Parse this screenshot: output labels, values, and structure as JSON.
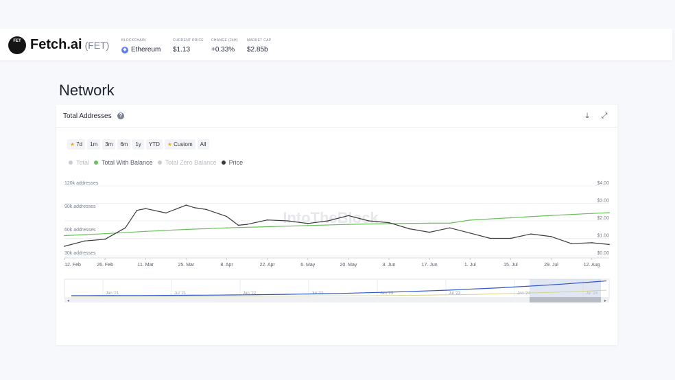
{
  "header": {
    "logo_text": "FET",
    "brand": "Fetch.ai",
    "ticker": "(FET)",
    "stats": [
      {
        "label": "BLOCKCHAIN",
        "value": "Ethereum"
      },
      {
        "label": "CURRENT PRICE",
        "value": "$1.13"
      },
      {
        "label": "CHANGE (24H)",
        "value": "+0.33%"
      },
      {
        "label": "MARKET CAP",
        "value": "$2.85b"
      }
    ]
  },
  "section_title": "Network",
  "card": {
    "title": "Total Addresses",
    "help_icon": "question-circle-icon",
    "download_icon": "download-icon",
    "expand_icon": "expand-icon"
  },
  "ranges": [
    "7d",
    "1m",
    "3m",
    "6m",
    "1y",
    "YTD",
    "Custom",
    "All"
  ],
  "watermark": "IntoTheBlock",
  "colors": {
    "total_with_balance": "#6abf5c",
    "price": "#3a3a3a",
    "inactive": "#c8ccd3",
    "navigator_blue": "#2f55c9"
  },
  "navigator": {
    "labels": [
      "Jan '21",
      "Jul '21",
      "Jan '22",
      "Jul '22",
      "Jan '23",
      "Jul '23",
      "Jan '24",
      "Jul '24"
    ]
  },
  "chart_data": {
    "type": "line",
    "title": "Total Addresses",
    "legend": [
      {
        "name": "Total",
        "active": false
      },
      {
        "name": "Total With Balance",
        "active": true
      },
      {
        "name": "Total Zero Balance",
        "active": false
      },
      {
        "name": "Price",
        "active": true
      }
    ],
    "legend_position": "top-left",
    "grid": "horizontal",
    "x_labels": [
      "12. Feb",
      "26. Feb",
      "11. Mar",
      "25. Mar",
      "8. Apr",
      "22. Apr",
      "6. May",
      "20. May",
      "3. Jun",
      "17. Jun",
      "1. Jul",
      "15. Jul",
      "29. Jul",
      "12. Aug"
    ],
    "y_left": {
      "ticks": [
        "120k addresses",
        "90k addresses",
        "60k addresses",
        "30k addresses"
      ],
      "range": [
        30000,
        120000
      ]
    },
    "y_right": {
      "ticks": [
        "$4.00",
        "$3.00",
        "$2.00",
        "$1.00",
        "$0.00"
      ],
      "range": [
        0,
        4
      ]
    },
    "series": [
      {
        "name": "Total With Balance",
        "axis": "left",
        "x": [
          "2024-02-12",
          "2024-02-26",
          "2024-03-11",
          "2024-03-25",
          "2024-04-08",
          "2024-04-22",
          "2024-05-06",
          "2024-05-20",
          "2024-06-03",
          "2024-06-17",
          "2024-06-24",
          "2024-07-01",
          "2024-07-15",
          "2024-07-29",
          "2024-08-12",
          "2024-08-18"
        ],
        "values": [
          56000,
          58500,
          61500,
          64000,
          66000,
          67500,
          69000,
          70500,
          71500,
          72000,
          72000,
          76000,
          79000,
          82000,
          84500,
          85500
        ]
      },
      {
        "name": "Price",
        "axis": "right",
        "x": [
          "2024-02-12",
          "2024-02-19",
          "2024-02-26",
          "2024-03-04",
          "2024-03-08",
          "2024-03-11",
          "2024-03-18",
          "2024-03-25",
          "2024-03-28",
          "2024-04-01",
          "2024-04-08",
          "2024-04-12",
          "2024-04-15",
          "2024-04-22",
          "2024-04-29",
          "2024-05-06",
          "2024-05-13",
          "2024-05-20",
          "2024-05-27",
          "2024-06-03",
          "2024-06-10",
          "2024-06-17",
          "2024-06-24",
          "2024-07-01",
          "2024-07-08",
          "2024-07-15",
          "2024-07-22",
          "2024-07-29",
          "2024-08-05",
          "2024-08-12",
          "2024-08-18"
        ],
        "values": [
          0.55,
          0.85,
          0.95,
          1.6,
          2.6,
          2.7,
          2.45,
          2.9,
          2.75,
          2.65,
          2.25,
          1.75,
          1.8,
          2.05,
          2.0,
          1.85,
          2.0,
          2.3,
          2.0,
          1.9,
          1.55,
          1.35,
          1.6,
          1.3,
          1.0,
          1.0,
          1.25,
          1.1,
          0.7,
          0.75,
          0.65
        ]
      }
    ]
  }
}
